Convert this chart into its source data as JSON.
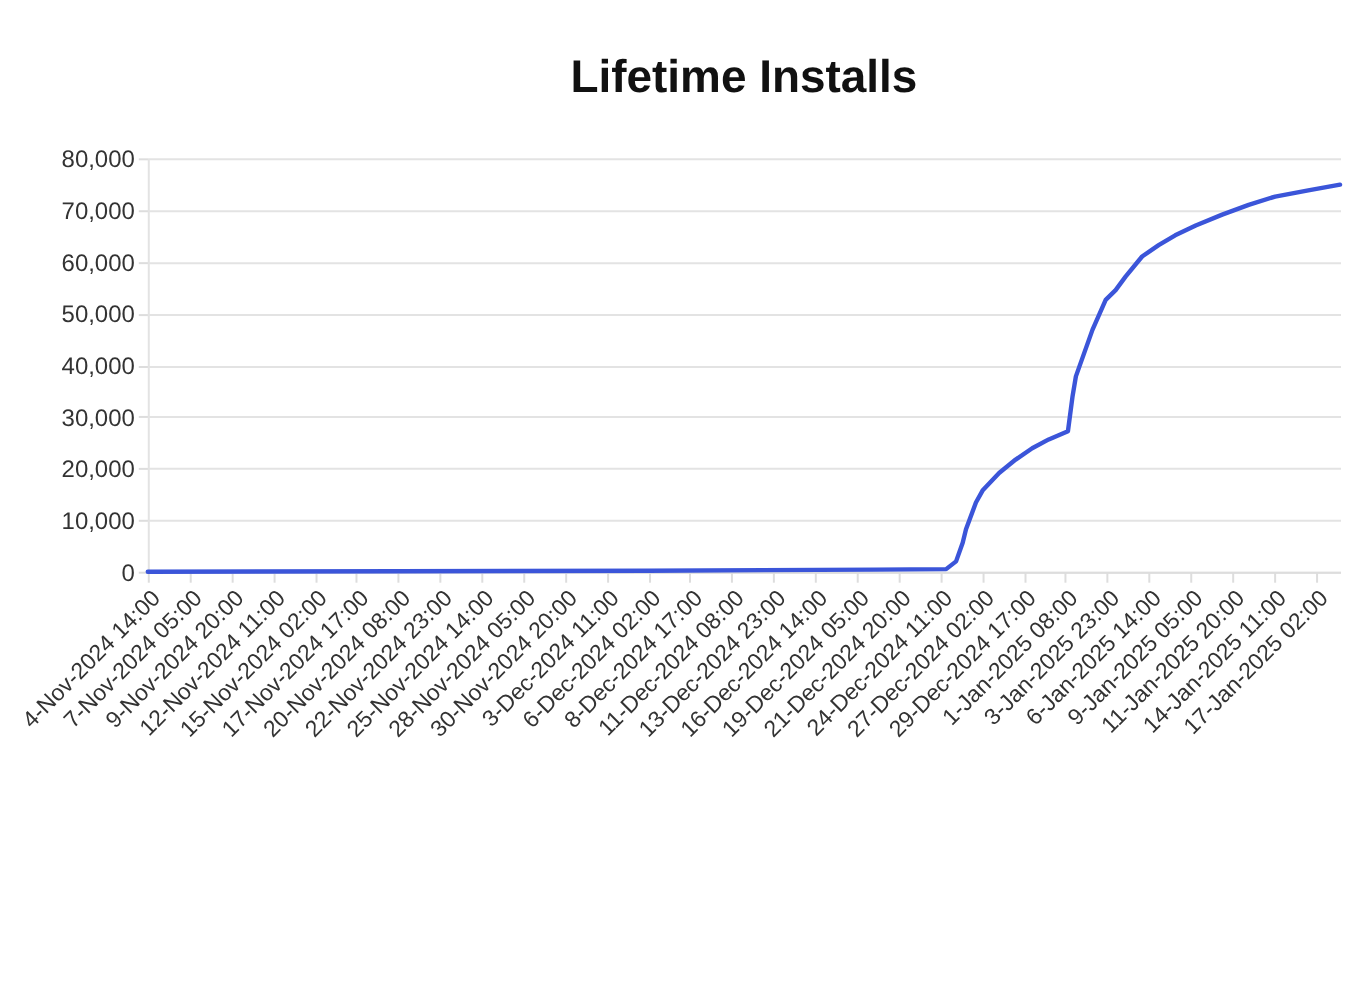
{
  "chart_data": {
    "type": "line",
    "title": "Lifetime Installs",
    "x": [
      "2024-11-04T14:00",
      "2024-11-20T08:00",
      "2024-12-06T02:00",
      "2024-12-20T10:00",
      "2024-12-24T20:00",
      "2024-12-25T11:00",
      "2024-12-25T21:00",
      "2024-12-26T02:00",
      "2024-12-26T17:00",
      "2024-12-27T03:00",
      "2024-12-28T04:00",
      "2024-12-29T05:00",
      "2024-12-30T06:00",
      "2024-12-31T07:00",
      "2025-01-01T12:00",
      "2025-01-01T19:00",
      "2025-01-02T00:00",
      "2025-01-03T01:00",
      "2025-01-03T21:00",
      "2025-01-04T12:00",
      "2025-01-05T03:00",
      "2025-01-06T04:00",
      "2025-01-07T05:00",
      "2025-01-08T06:00",
      "2025-01-09T13:00",
      "2025-01-11T05:00",
      "2025-01-12T21:00",
      "2025-01-14T13:00",
      "2025-01-16T15:00",
      "2025-01-18T15:00"
    ],
    "series": [
      {
        "color": "#3b55d9",
        "values": [
          0,
          100,
          200,
          400,
          500,
          2000,
          5600,
          8200,
          13400,
          15700,
          19100,
          21700,
          23900,
          25600,
          27200,
          34000,
          37800,
          46800,
          52600,
          54500,
          57100,
          61000,
          63200,
          65100,
          67000,
          69100,
          71000,
          72600,
          73800,
          74900
        ]
      }
    ],
    "xlim": [
      "2024-11-04T14:00",
      "2025-01-18T15:00"
    ],
    "xticks": [
      {
        "value": "2024-11-04T14:00",
        "label": "4-Nov-2024 14:00"
      },
      {
        "value": "2024-11-07T05:00",
        "label": "7-Nov-2024 05:00"
      },
      {
        "value": "2024-11-09T20:00",
        "label": "9-Nov-2024 20:00"
      },
      {
        "value": "2024-11-12T11:00",
        "label": "12-Nov-2024 11:00"
      },
      {
        "value": "2024-11-15T02:00",
        "label": "15-Nov-2024 02:00"
      },
      {
        "value": "2024-11-17T17:00",
        "label": "17-Nov-2024 17:00"
      },
      {
        "value": "2024-11-20T08:00",
        "label": "20-Nov-2024 08:00"
      },
      {
        "value": "2024-11-22T23:00",
        "label": "22-Nov-2024 23:00"
      },
      {
        "value": "2024-11-25T14:00",
        "label": "25-Nov-2024 14:00"
      },
      {
        "value": "2024-11-28T05:00",
        "label": "28-Nov-2024 05:00"
      },
      {
        "value": "2024-11-30T20:00",
        "label": "30-Nov-2024 20:00"
      },
      {
        "value": "2024-12-03T11:00",
        "label": "3-Dec-2024 11:00"
      },
      {
        "value": "2024-12-06T02:00",
        "label": "6-Dec-2024 02:00"
      },
      {
        "value": "2024-12-08T17:00",
        "label": "8-Dec-2024 17:00"
      },
      {
        "value": "2024-12-11T08:00",
        "label": "11-Dec-2024 08:00"
      },
      {
        "value": "2024-12-13T23:00",
        "label": "13-Dec-2024 23:00"
      },
      {
        "value": "2024-12-16T14:00",
        "label": "16-Dec-2024 14:00"
      },
      {
        "value": "2024-12-19T05:00",
        "label": "19-Dec-2024 05:00"
      },
      {
        "value": "2024-12-21T20:00",
        "label": "21-Dec-2024 20:00"
      },
      {
        "value": "2024-12-24T11:00",
        "label": "24-Dec-2024 11:00"
      },
      {
        "value": "2024-12-27T02:00",
        "label": "27-Dec-2024 02:00"
      },
      {
        "value": "2024-12-29T17:00",
        "label": "29-Dec-2024 17:00"
      },
      {
        "value": "2025-01-01T08:00",
        "label": "1-Jan-2025 08:00"
      },
      {
        "value": "2025-01-03T23:00",
        "label": "3-Jan-2025 23:00"
      },
      {
        "value": "2025-01-06T14:00",
        "label": "6-Jan-2025 14:00"
      },
      {
        "value": "2025-01-09T05:00",
        "label": "9-Jan-2025 05:00"
      },
      {
        "value": "2025-01-11T20:00",
        "label": "11-Jan-2025 20:00"
      },
      {
        "value": "2025-01-14T11:00",
        "label": "14-Jan-2025 11:00"
      },
      {
        "value": "2025-01-17T02:00",
        "label": "17-Jan-2025 02:00"
      }
    ],
    "ylim": [
      0,
      80000
    ],
    "yticks": [
      0,
      {
        "value": 10000,
        "label": "10,000"
      },
      {
        "value": 20000,
        "label": "20,000"
      },
      {
        "value": 30000,
        "label": "30,000"
      },
      {
        "value": 40000,
        "label": "40,000"
      },
      {
        "value": 50000,
        "label": "50,000"
      },
      {
        "value": 60000,
        "label": "60,000"
      },
      {
        "value": 70000,
        "label": "70,000"
      },
      {
        "value": 80000,
        "label": "80,000"
      }
    ],
    "grid": "y"
  }
}
